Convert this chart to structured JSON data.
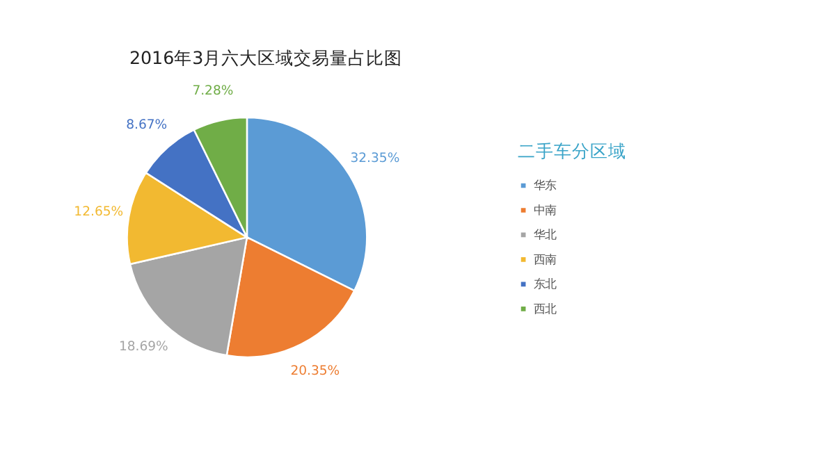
{
  "chart_data": {
    "type": "pie",
    "title": "2016年3月六大区域交易量占比图",
    "legend_title": "二手车分区域",
    "legend": "right",
    "categories": [
      "华东",
      "中南",
      "华北",
      "西南",
      "东北",
      "西北"
    ],
    "values": [
      32.35,
      20.35,
      18.69,
      12.65,
      8.67,
      7.28
    ],
    "value_labels": [
      "32.35%",
      "20.35%",
      "18.69%",
      "12.65%",
      "8.67%",
      "7.28%"
    ],
    "colors": [
      "#5b9bd5",
      "#ed7d31",
      "#a5a5a5",
      "#f2b931",
      "#4472c4",
      "#70ad47"
    ]
  }
}
